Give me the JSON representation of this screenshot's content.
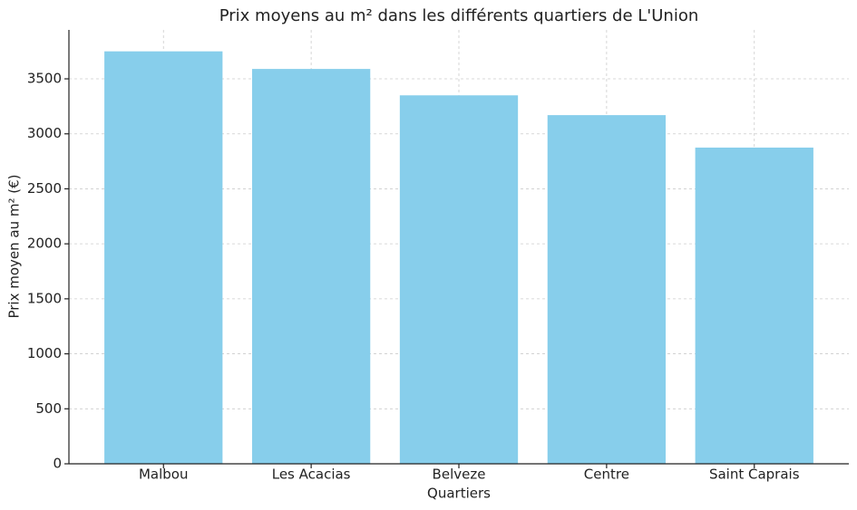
{
  "chart_data": {
    "type": "bar",
    "title": "Prix moyens au m² dans les différents quartiers de L'Union",
    "x_label": "Quartiers",
    "y_label": "Prix moyen au m² (€)",
    "categories": [
      "Malbou",
      "Les Acacias",
      "Belveze",
      "Centre",
      "Saint Caprais"
    ],
    "values": [
      3750,
      3590,
      3350,
      3170,
      2875
    ],
    "color": "#87ceeb",
    "ylim": [
      0,
      3945
    ],
    "yticks": [
      0,
      500,
      1000,
      1500,
      2000,
      2500,
      3000,
      3500
    ],
    "grid": true
  }
}
